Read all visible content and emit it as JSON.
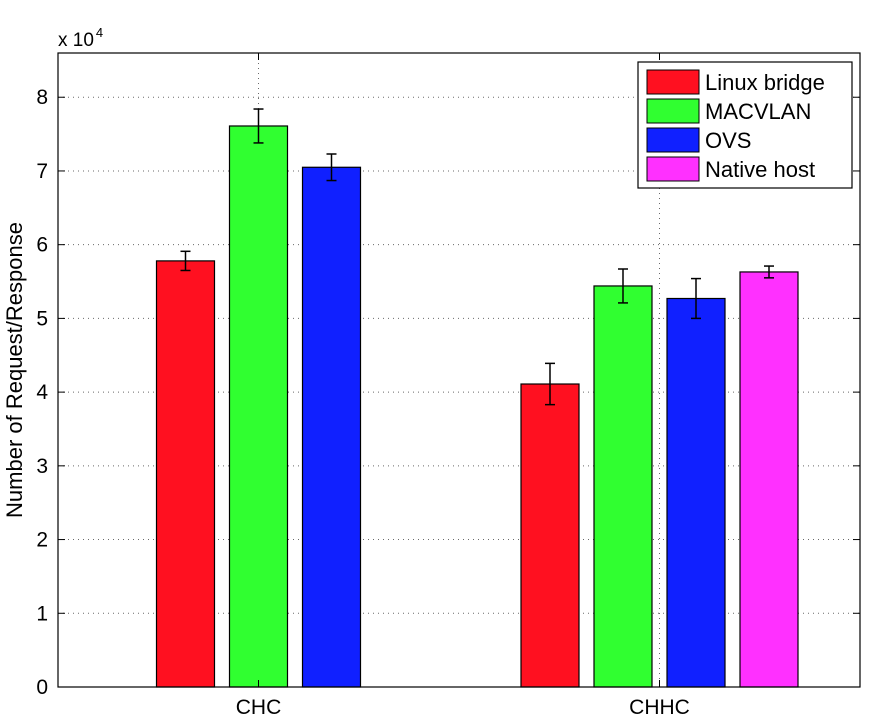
{
  "chart_data": {
    "type": "bar",
    "categories": [
      "CHC",
      "CHHC"
    ],
    "ylabel": "Number of Request/Response",
    "xlabel": "",
    "y_multiplier_base": "x 10",
    "y_multiplier_exponent": "4",
    "ylim": [
      0,
      86000
    ],
    "yticks": [
      0,
      10000,
      20000,
      30000,
      40000,
      50000,
      60000,
      70000,
      80000
    ],
    "ytick_labels": [
      "0",
      "1",
      "2",
      "3",
      "4",
      "5",
      "6",
      "7",
      "8"
    ],
    "grid": true,
    "legend_position": "top-right",
    "series": [
      {
        "name": "Linux bridge",
        "color": "#ff1020",
        "values": [
          57800,
          41100
        ],
        "errors": [
          1300,
          2800
        ]
      },
      {
        "name": "MACVLAN",
        "color": "#30ff30",
        "values": [
          76100,
          54400
        ],
        "errors": [
          2300,
          2300
        ]
      },
      {
        "name": "OVS",
        "color": "#1020ff",
        "values": [
          70500,
          52700
        ],
        "errors": [
          1800,
          2700
        ]
      },
      {
        "name": "Native host",
        "color": "#ff30ff",
        "values": [
          null,
          56300
        ],
        "errors": [
          null,
          800
        ]
      }
    ]
  }
}
